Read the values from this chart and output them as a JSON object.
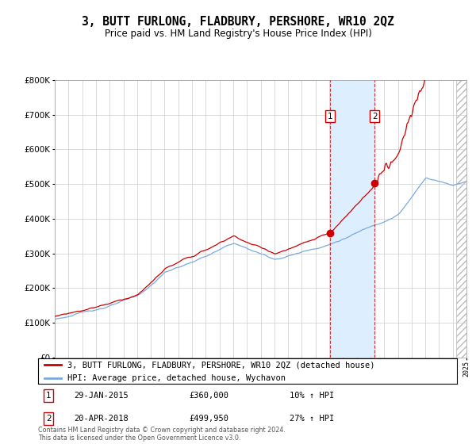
{
  "title": "3, BUTT FURLONG, FLADBURY, PERSHORE, WR10 2QZ",
  "subtitle": "Price paid vs. HM Land Registry's House Price Index (HPI)",
  "legend_line1": "3, BUTT FURLONG, FLADBURY, PERSHORE, WR10 2QZ (detached house)",
  "legend_line2": "HPI: Average price, detached house, Wychavon",
  "transaction1_date": "29-JAN-2015",
  "transaction1_price": 360000,
  "transaction1_price_str": "£360,000",
  "transaction1_hpi_pct": "10% ↑ HPI",
  "transaction2_date": "20-APR-2018",
  "transaction2_price": 499950,
  "transaction2_price_str": "£499,950",
  "transaction2_hpi_pct": "27% ↑ HPI",
  "footer": "Contains HM Land Registry data © Crown copyright and database right 2024.\nThis data is licensed under the Open Government Licence v3.0.",
  "xmin": 1995,
  "xmax": 2025,
  "ymin": 0,
  "ymax": 800000,
  "red_color": "#cc0000",
  "blue_color": "#7aaadd",
  "shade_color": "#ddeeff",
  "transaction1_x": 2015.08,
  "transaction2_x": 2018.3,
  "future_start": 2024.25
}
